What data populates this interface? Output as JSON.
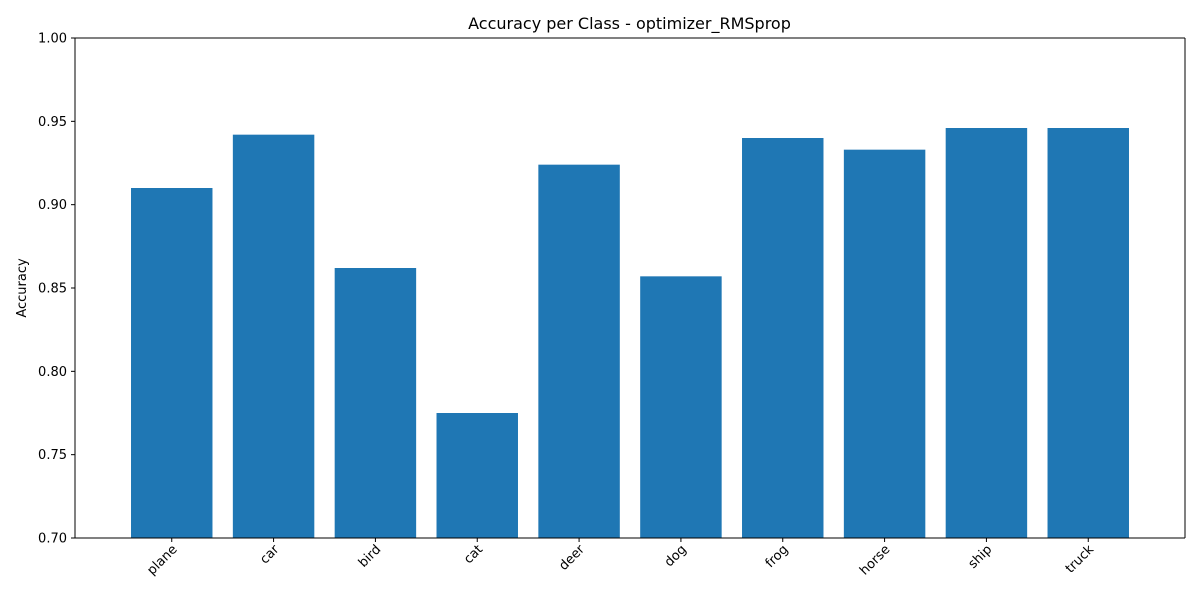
{
  "chart_data": {
    "type": "bar",
    "title": "Accuracy per Class - optimizer_RMSprop",
    "xlabel": "",
    "ylabel": "Accuracy",
    "categories": [
      "plane",
      "car",
      "bird",
      "cat",
      "deer",
      "dog",
      "frog",
      "horse",
      "ship",
      "truck"
    ],
    "values": [
      0.91,
      0.942,
      0.862,
      0.775,
      0.924,
      0.857,
      0.94,
      0.933,
      0.946,
      0.946
    ],
    "ylim": [
      0.7,
      1.0
    ],
    "yticks": [
      "0.70",
      "0.75",
      "0.80",
      "0.85",
      "0.90",
      "0.95",
      "1.00"
    ],
    "grid": false,
    "bar_color": "#1f77b4"
  }
}
